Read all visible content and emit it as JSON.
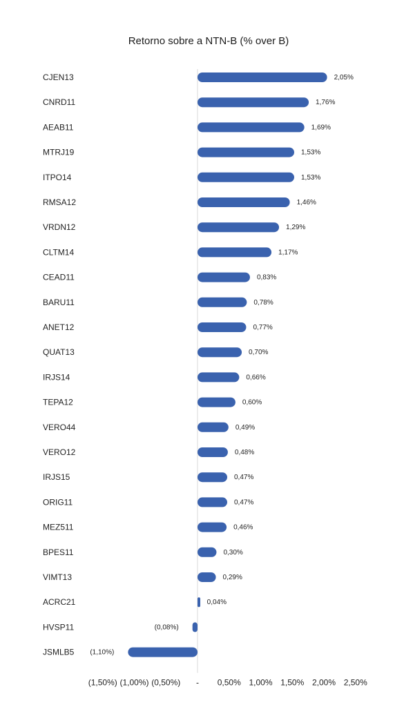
{
  "chart_data": {
    "type": "bar",
    "orientation": "horizontal",
    "title": "Retorno sobre a NTN-B (% over B)",
    "xlabel": "",
    "ylabel": "",
    "xlim": [
      -1.5,
      2.5
    ],
    "grid": false,
    "legend": "none",
    "bar_color": "#3a62ae",
    "axis_color": "#d9d9d9",
    "categories": [
      "CJEN13",
      "CNRD11",
      "AEAB11",
      "MTRJ19",
      "ITPO14",
      "RMSA12",
      "VRDN12",
      "CLTM14",
      "CEAD11",
      "BARU11",
      "ANET12",
      "QUAT13",
      "IRJS14",
      "TEPA12",
      "VERO44",
      "VERO12",
      "IRJS15",
      "ORIG11",
      "MEZ511",
      "BPES11",
      "VIMT13",
      "ACRC21",
      "HVSP11",
      "JSMLB5"
    ],
    "values": [
      2.05,
      1.76,
      1.69,
      1.53,
      1.53,
      1.46,
      1.29,
      1.17,
      0.83,
      0.78,
      0.77,
      0.7,
      0.66,
      0.6,
      0.49,
      0.48,
      0.47,
      0.47,
      0.46,
      0.3,
      0.29,
      0.04,
      -0.08,
      -1.1
    ],
    "value_labels": [
      "2,05%",
      "1,76%",
      "1,69%",
      "1,53%",
      "1,53%",
      "1,46%",
      "1,29%",
      "1,17%",
      "0,83%",
      "0,78%",
      "0,77%",
      "0,70%",
      "0,66%",
      "0,60%",
      "0,49%",
      "0,48%",
      "0,47%",
      "0,47%",
      "0,46%",
      "0,30%",
      "0,29%",
      "0,04%",
      "(0,08%)",
      "(1,10%)"
    ],
    "ticks": [
      -1.5,
      -1.0,
      -0.5,
      0,
      0.5,
      1.0,
      1.5,
      2.0,
      2.5
    ],
    "tick_labels": [
      "(1,50%)",
      "(1,00%)",
      "(0,50%)",
      "-",
      "0,50%",
      "1,00%",
      "1,50%",
      "2,00%",
      "2,50%"
    ]
  }
}
